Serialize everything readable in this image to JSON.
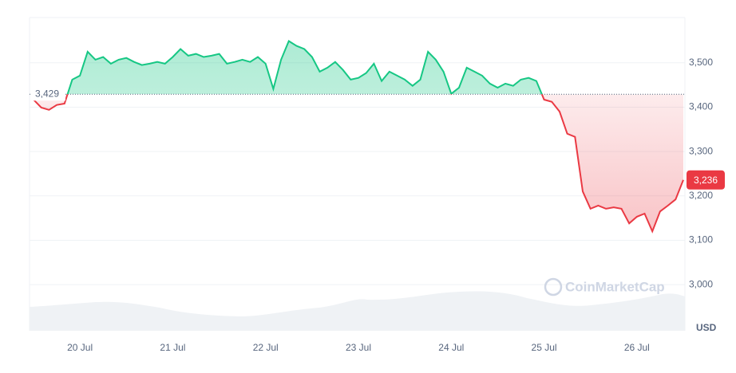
{
  "chart_data": {
    "type": "line",
    "categories": [
      null,
      null,
      null,
      null,
      null,
      null,
      "20 Jul",
      null,
      null,
      null,
      null,
      null,
      null,
      null,
      null,
      null,
      null,
      null,
      "21 Jul",
      null,
      null,
      null,
      null,
      null,
      null,
      null,
      null,
      null,
      null,
      null,
      "22 Jul",
      null,
      null,
      null,
      null,
      null,
      null,
      null,
      null,
      null,
      null,
      null,
      "23 Jul",
      null,
      null,
      null,
      null,
      null,
      null,
      null,
      null,
      null,
      null,
      null,
      "24 Jul",
      null,
      null,
      null,
      null,
      null,
      null,
      null,
      null,
      null,
      null,
      null,
      "25 Jul",
      null,
      null,
      null,
      null,
      null,
      null,
      null,
      null,
      null,
      null,
      null,
      "26 Jul",
      null,
      null,
      null,
      null,
      null,
      null
    ],
    "values": [
      3417,
      3399,
      3394,
      3405,
      3408,
      3462,
      3471,
      3525,
      3507,
      3513,
      3498,
      3507,
      3511,
      3502,
      3495,
      3498,
      3502,
      3498,
      3513,
      3531,
      3516,
      3520,
      3513,
      3516,
      3520,
      3498,
      3502,
      3507,
      3502,
      3513,
      3498,
      3441,
      3507,
      3549,
      3538,
      3531,
      3513,
      3480,
      3489,
      3502,
      3484,
      3462,
      3466,
      3477,
      3498,
      3459,
      3480,
      3471,
      3462,
      3448,
      3462,
      3525,
      3507,
      3480,
      3430,
      3444,
      3489,
      3480,
      3471,
      3453,
      3444,
      3453,
      3448,
      3462,
      3466,
      3459,
      3417,
      3412,
      3390,
      3340,
      3333,
      3210,
      3171,
      3178,
      3171,
      3174,
      3171,
      3138,
      3153,
      3160,
      3120,
      3165,
      3178,
      3192,
      3236
    ],
    "up_color": "#16c784",
    "down_color": "#ea3943",
    "baseline": {
      "value": 3429,
      "label": "3,429"
    },
    "current_price": {
      "value": 3236,
      "label": "3,236"
    },
    "ylim": [
      2896,
      3602
    ],
    "yticks": [
      {
        "value": 3000,
        "label": "3,000"
      },
      {
        "value": 3100,
        "label": "3,100"
      },
      {
        "value": 3200,
        "label": "3,200"
      },
      {
        "value": 3300,
        "label": "3,300"
      },
      {
        "value": 3400,
        "label": "3,400"
      },
      {
        "value": 3500,
        "label": "3,500"
      }
    ],
    "grid": true,
    "currency_label": "USD",
    "watermark": "CoinMarketCap"
  }
}
